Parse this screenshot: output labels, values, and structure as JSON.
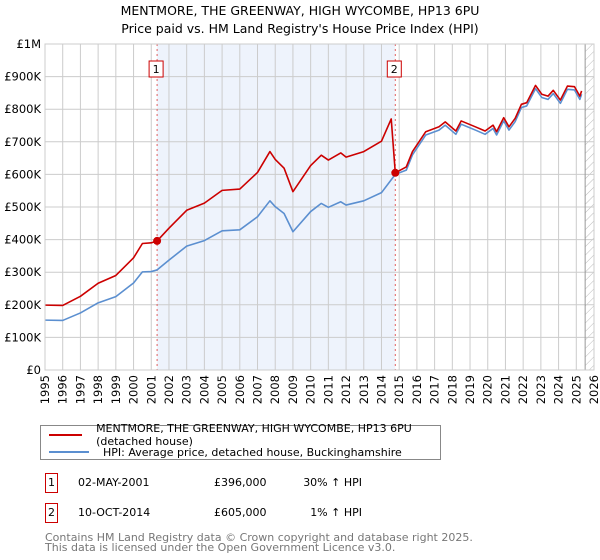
{
  "title": "MENTMORE, THE GREENWAY, HIGH WYCOMBE, HP13 6PU",
  "subtitle": "Price paid vs. HM Land Registry's House Price Index (HPI)",
  "chart_data": {
    "type": "line",
    "ylim": [
      0,
      1000000
    ],
    "xlim": [
      1995,
      2026
    ],
    "yticks": [
      {
        "v": 0,
        "label": "£0"
      },
      {
        "v": 100000,
        "label": "£100K"
      },
      {
        "v": 200000,
        "label": "£200K"
      },
      {
        "v": 300000,
        "label": "£300K"
      },
      {
        "v": 400000,
        "label": "£400K"
      },
      {
        "v": 500000,
        "label": "£500K"
      },
      {
        "v": 600000,
        "label": "£600K"
      },
      {
        "v": 700000,
        "label": "£700K"
      },
      {
        "v": 800000,
        "label": "£800K"
      },
      {
        "v": 900000,
        "label": "£900K"
      },
      {
        "v": 1000000,
        "label": "£1M"
      }
    ],
    "xticks": [
      1995,
      1996,
      1997,
      1998,
      1999,
      2000,
      2001,
      2002,
      2003,
      2004,
      2005,
      2006,
      2007,
      2008,
      2009,
      2010,
      2011,
      2012,
      2013,
      2014,
      2015,
      2016,
      2017,
      2018,
      2019,
      2020,
      2021,
      2022,
      2023,
      2024,
      2025,
      2026
    ],
    "shaded_range": [
      2001.33,
      2014.78
    ],
    "forecast_hatch_from": 2025.5,
    "series": [
      {
        "name": "MENTMORE, THE GREENWAY, HIGH WYCOMBE, HP13 6PU (detached house)",
        "color": "#cc0000",
        "x": [
          1995,
          1996,
          1997,
          1998,
          1999,
          2000,
          2000.5,
          2001,
          2001.33,
          2002,
          2003,
          2004,
          2005,
          2006,
          2007,
          2007.7,
          2008,
          2008.5,
          2009,
          2010,
          2010.6,
          2011,
          2011.7,
          2012,
          2013,
          2014,
          2014.55,
          2014.78,
          2015.4,
          2015.75,
          2016.5,
          2017.25,
          2017.6,
          2018.2,
          2018.5,
          2019.3,
          2019.85,
          2020.3,
          2020.5,
          2020.9,
          2021.2,
          2021.55,
          2021.9,
          2022.2,
          2022.7,
          2023.05,
          2023.4,
          2023.7,
          2024.1,
          2024.5,
          2024.9,
          2025.2,
          2025.3
        ],
        "y": [
          199000,
          198000,
          226000,
          266000,
          290000,
          344000,
          388000,
          390000,
          396000,
          435000,
          490000,
          512000,
          551000,
          555000,
          606000,
          670000,
          646000,
          619000,
          547000,
          627000,
          659000,
          644000,
          666000,
          653000,
          670000,
          702000,
          770000,
          605000,
          623000,
          670000,
          731000,
          746000,
          761000,
          733000,
          764000,
          746000,
          733000,
          751000,
          731000,
          774000,
          746000,
          772000,
          815000,
          820000,
          873000,
          846000,
          840000,
          858000,
          828000,
          871000,
          869000,
          840000,
          856000
        ]
      },
      {
        "name": "HPI: Average price, detached house, Buckinghamshire",
        "color": "#5b8fd0",
        "x": [
          1995,
          1996,
          1997,
          1998,
          1999,
          2000,
          2000.5,
          2001,
          2001.33,
          2002,
          2003,
          2004,
          2005,
          2006,
          2007,
          2007.7,
          2008,
          2008.5,
          2009,
          2010,
          2010.6,
          2011,
          2011.7,
          2012,
          2013,
          2014,
          2014.78,
          2015.4,
          2015.75,
          2016.5,
          2017.25,
          2017.6,
          2018.2,
          2018.5,
          2019.3,
          2019.85,
          2020.3,
          2020.5,
          2020.9,
          2021.2,
          2021.55,
          2021.9,
          2022.2,
          2022.7,
          2023.05,
          2023.4,
          2023.7,
          2024.1,
          2024.5,
          2024.9,
          2025.2,
          2025.3
        ],
        "y": [
          153000,
          152000,
          175000,
          206000,
          225000,
          267000,
          301000,
          302000,
          307000,
          337000,
          380000,
          397000,
          427000,
          430000,
          470000,
          519000,
          501000,
          480000,
          424000,
          486000,
          511000,
          499000,
          516000,
          506000,
          519000,
          544000,
          600000,
          613000,
          660000,
          721000,
          736000,
          751000,
          723000,
          754000,
          736000,
          723000,
          741000,
          721000,
          764000,
          736000,
          762000,
          805000,
          810000,
          863000,
          836000,
          830000,
          848000,
          818000,
          861000,
          859000,
          830000,
          846000
        ]
      }
    ],
    "sales": [
      {
        "label": "1",
        "x": 2001.33,
        "y": 396000
      },
      {
        "label": "2",
        "x": 2014.78,
        "y": 605000
      }
    ]
  },
  "legend": {
    "red": "MENTMORE, THE GREENWAY, HIGH WYCOMBE, HP13 6PU (detached house)",
    "blue": "HPI: Average price, detached house, Buckinghamshire"
  },
  "sales_table": [
    {
      "num": "1",
      "date": "02-MAY-2001",
      "price": "£396,000",
      "hpi": "30% ↑ HPI"
    },
    {
      "num": "2",
      "date": "10-OCT-2014",
      "price": "£605,000",
      "hpi": "1% ↑ HPI"
    }
  ],
  "footer": {
    "line1": "Contains HM Land Registry data © Crown copyright and database right 2025.",
    "line2": "This data is licensed under the Open Government Licence v3.0."
  }
}
